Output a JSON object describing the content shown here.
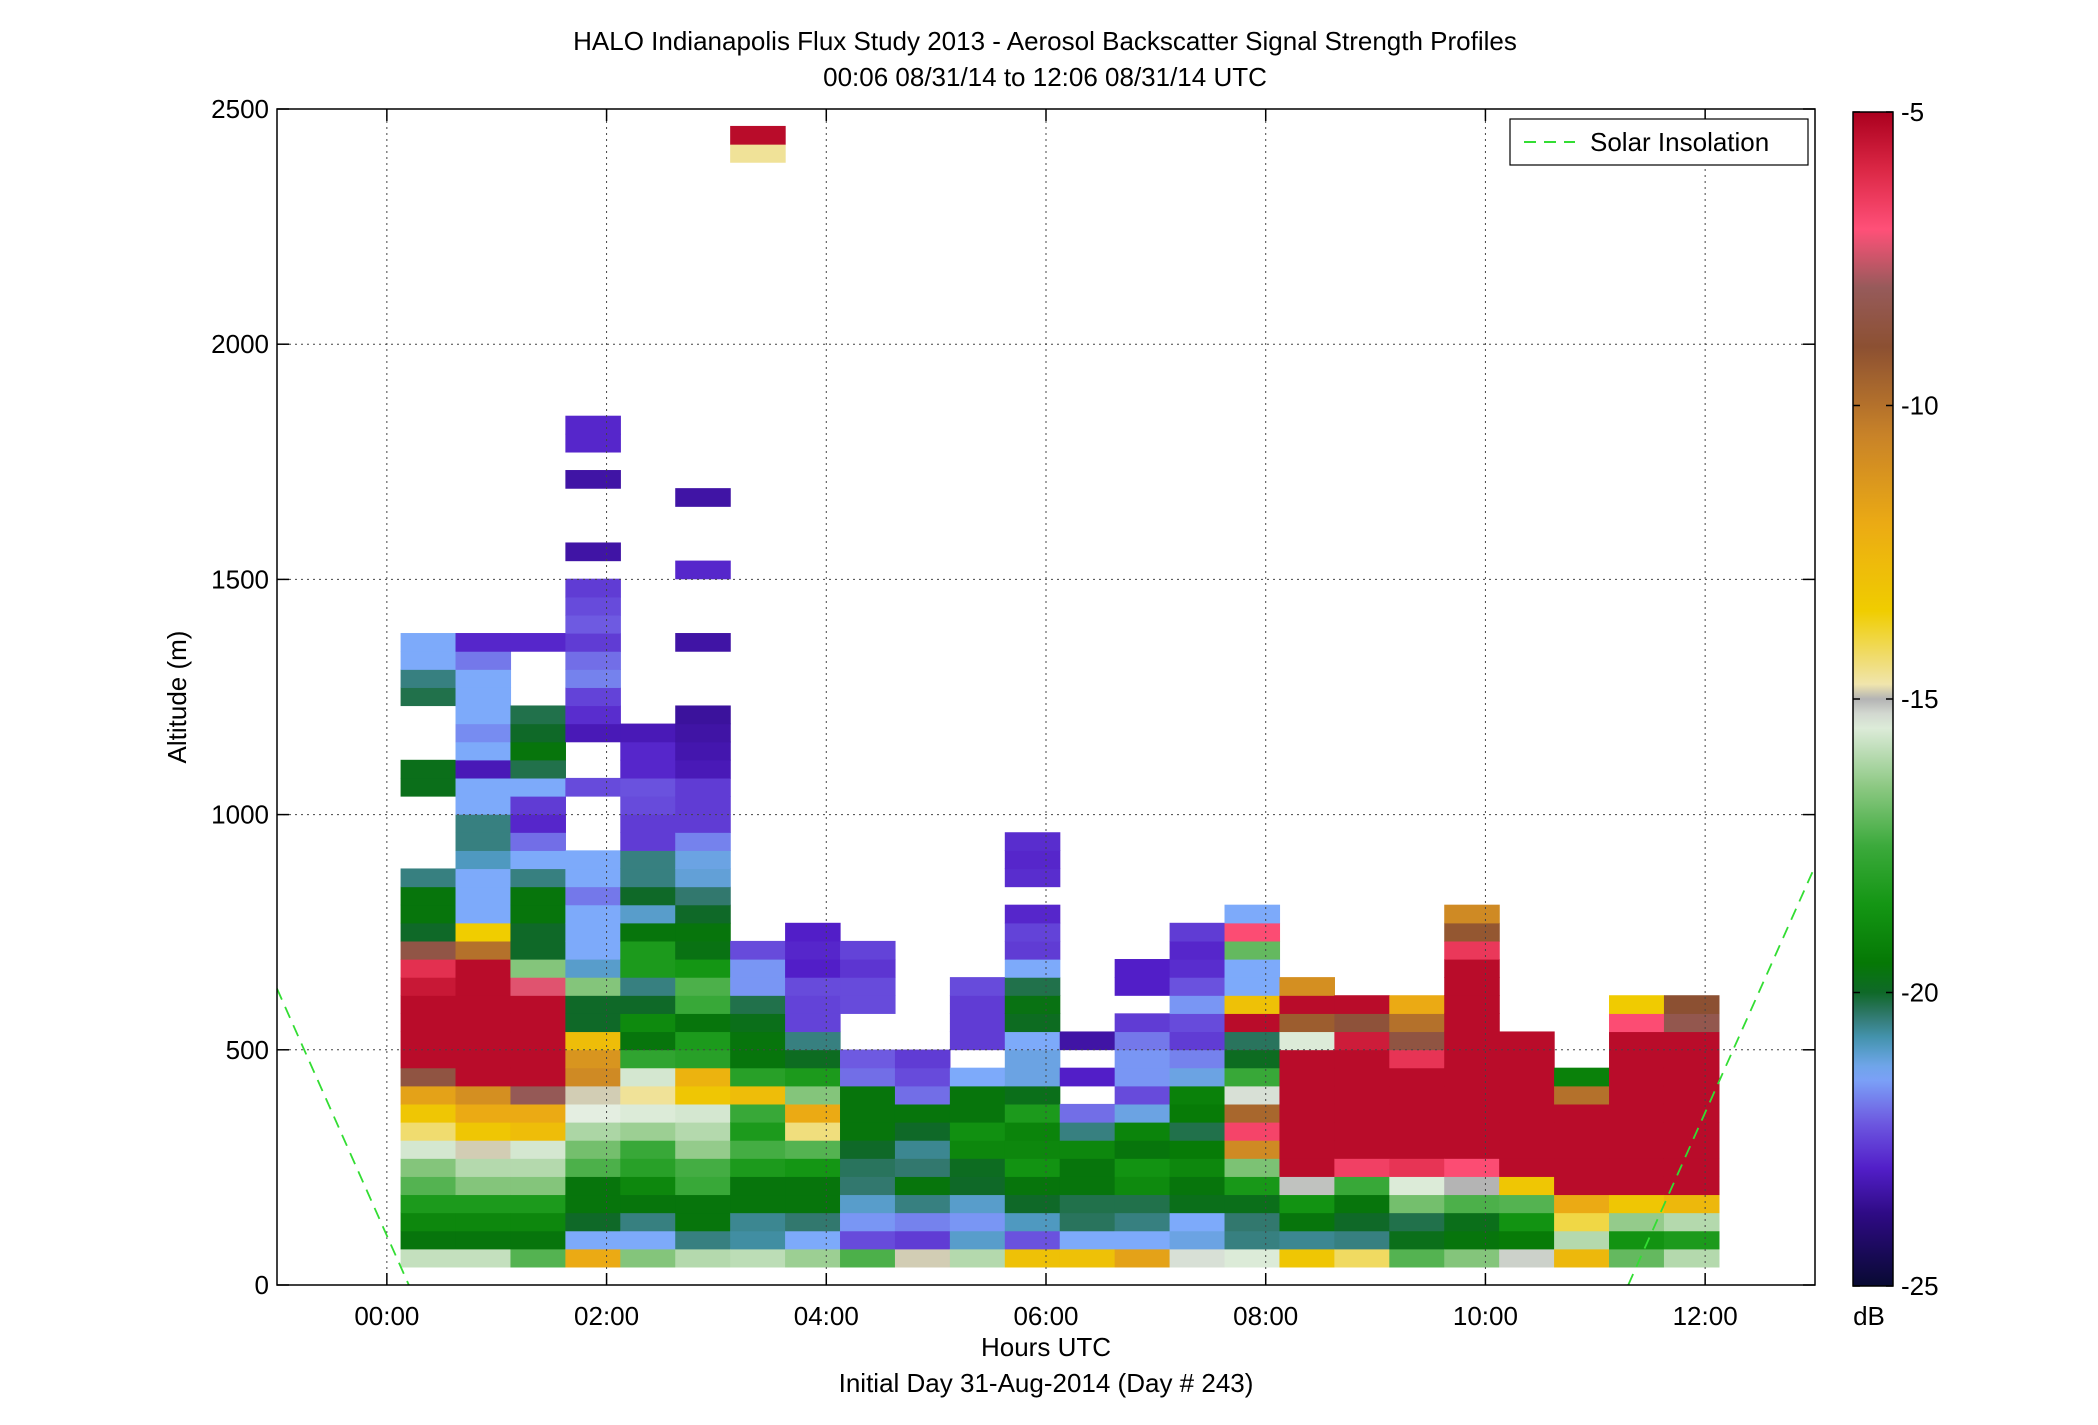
{
  "chart_data": {
    "type": "heatmap",
    "title": "HALO Indianapolis Flux Study 2013 - Aerosol Backscatter Signal Strength Profiles",
    "subtitle": "00:06 08/31/14 to 12:06 08/31/14  UTC",
    "xlabel": "Hours UTC",
    "xlabel2": "Initial Day 31-Aug-2014 (Day # 243)",
    "ylabel": "Altitude (m)",
    "xlim": [
      -1.0,
      13.0
    ],
    "ylim": [
      0,
      2500
    ],
    "grid": true,
    "x_ticks": [
      0,
      2,
      4,
      6,
      8,
      10,
      12
    ],
    "x_tick_labels": [
      "00:00",
      "02:00",
      "04:00",
      "06:00",
      "08:00",
      "10:00",
      "12:00"
    ],
    "y_ticks": [
      0,
      500,
      1000,
      1500,
      2000,
      2500
    ],
    "y_tick_labels": [
      "0",
      "500",
      "1000",
      "1500",
      "2000",
      "2500"
    ],
    "colorbar": {
      "label": "dB",
      "range": [
        -25,
        -5
      ],
      "ticks": [
        -25,
        -20,
        -15,
        -10,
        -5
      ],
      "tick_labels": [
        "-25",
        "-20",
        "-15",
        "-10",
        "-5"
      ]
    },
    "legend": {
      "position": "top-right",
      "entries": [
        "Solar Insolation"
      ]
    },
    "solar_insolation_line": {
      "color": "#33dd33",
      "segments": [
        [
          [
            -1.0,
            630
          ],
          [
            0.2,
            0
          ]
        ],
        [
          [
            11.3,
            0
          ],
          [
            13.0,
            890
          ]
        ]
      ]
    },
    "column_width_hours": 0.5,
    "row_height_m": 38.5,
    "columns": [
      {
        "t": 0.375,
        "z0": 38.5,
        "dB": [
          -15.8,
          -19.6,
          -19.0,
          -18.3,
          -17.2,
          -16.6,
          -15.6,
          -14.3,
          -13.2,
          -11.7,
          -8.6,
          -5.3,
          -5.3,
          -5.3,
          -5.3,
          -5.6,
          -6.2,
          -8.5,
          -20.0,
          -19.6,
          -19.6,
          -20.5,
          null,
          null,
          null,
          null,
          -19.8,
          -19.8,
          null,
          null,
          null,
          -20.2,
          -20.5,
          -21.4,
          -21.4
        ]
      },
      {
        "t": 0.875,
        "z0": 38.5,
        "dB": [
          -15.8,
          -19.6,
          -19.0,
          -18.3,
          -16.6,
          -16.0,
          -14.9,
          -13.2,
          -12.0,
          -11.0,
          -5.3,
          -5.3,
          -5.3,
          -5.3,
          -5.3,
          -5.3,
          -5.3,
          -10.0,
          -13.5,
          -21.4,
          -21.4,
          -21.4,
          -20.9,
          -20.5,
          -20.5,
          -21.4,
          -21.4,
          -23.2,
          -21.4,
          -21.7,
          -21.4,
          -21.4,
          -21.4,
          -21.9,
          -22.9
        ]
      },
      {
        "t": 1.375,
        "z0": 38.5,
        "dB": [
          -17.2,
          -19.6,
          -19.0,
          -18.3,
          -16.6,
          -16.0,
          -15.6,
          -12.8,
          -12.0,
          -8.1,
          -5.3,
          -5.3,
          -5.3,
          -5.3,
          -5.3,
          -7.3,
          -16.6,
          -20.0,
          -20.0,
          -19.6,
          -19.6,
          -20.5,
          -21.4,
          -22.0,
          -22.9,
          -22.6,
          -21.4,
          -20.2,
          -19.6,
          -20.0,
          -20.2,
          null,
          null,
          null,
          -22.9
        ]
      },
      {
        "t": 1.875,
        "z0": 38.5,
        "dB": [
          -12.0,
          -21.4,
          -20.0,
          -19.6,
          -19.6,
          -17.3,
          -16.8,
          -16.1,
          -15.4,
          -14.9,
          -10.8,
          -11.2,
          -12.8,
          -20.0,
          -20.0,
          -16.6,
          -21.0,
          -21.4,
          -21.4,
          -21.4,
          -21.9,
          -21.4,
          -21.4,
          null,
          null,
          null,
          -22.4,
          null,
          null,
          -23.2,
          -22.8,
          -22.5,
          -21.8,
          -22.0,
          -22.6,
          -22.2,
          -22.4,
          -22.6,
          null,
          -23.4,
          null,
          null,
          null,
          -23.4,
          null,
          -22.9,
          -22.9
        ]
      },
      {
        "t": 2.375,
        "z0": 38.5,
        "dB": [
          -16.6,
          -21.4,
          -20.5,
          -19.6,
          -19.0,
          -18.0,
          -17.6,
          -16.3,
          -15.5,
          -14.6,
          -15.6,
          -17.8,
          -19.6,
          -18.9,
          -20.0,
          -20.5,
          -18.3,
          -18.3,
          -19.6,
          -21.0,
          -20.0,
          -20.5,
          -20.5,
          -22.6,
          -22.6,
          -22.4,
          -22.3,
          -22.9,
          -22.9,
          -23.2
        ]
      },
      {
        "t": 2.875,
        "z0": 38.5,
        "dB": [
          -16.0,
          -20.5,
          -19.6,
          -19.6,
          -17.6,
          -17.4,
          -16.4,
          -16.0,
          -15.6,
          -13.2,
          -12.4,
          -18.0,
          -18.3,
          -19.6,
          -17.6,
          -17.3,
          -18.5,
          -19.7,
          -19.6,
          -20.0,
          -20.4,
          -21.1,
          -21.2,
          -21.8,
          -22.6,
          -22.6,
          -22.6,
          -23.2,
          -23.3,
          -23.4,
          -23.5,
          null,
          null,
          null,
          -23.4,
          null,
          null,
          null,
          -22.9,
          null,
          null,
          null,
          -23.4
        ]
      },
      {
        "t": 3.375,
        "z0": 38.5,
        "dB": [
          -15.9,
          -20.7,
          -20.6,
          -19.6,
          -19.6,
          -18.3,
          -17.4,
          -18.3,
          -17.6,
          -12.8,
          -18.0,
          -19.6,
          -19.6,
          -19.8,
          -20.2,
          -21.6,
          -21.6,
          -22.4,
          null,
          null,
          null,
          null,
          null,
          null,
          null,
          null,
          null,
          null,
          null,
          null,
          null,
          null,
          null,
          null,
          null,
          null,
          null,
          null,
          null,
          null,
          null,
          null,
          null,
          null,
          null,
          null,
          null,
          null,
          null,
          null,
          null,
          null,
          null,
          null,
          null,
          null,
          null,
          null,
          null,
          null,
          null,
          -14.6,
          -5.3
        ]
      },
      {
        "t": 3.875,
        "z0": 38.5,
        "dB": [
          -16.3,
          -21.4,
          -20.4,
          -19.6,
          -19.6,
          -18.5,
          -17.2,
          -14.4,
          -12.0,
          -16.6,
          -18.3,
          -19.9,
          -20.5,
          -22.5,
          -22.5,
          -22.4,
          -23.0,
          -22.9,
          -23.0
        ]
      },
      {
        "t": 4.375,
        "z0": 38.5,
        "dB": [
          -17.3,
          -22.4,
          -21.6,
          -21.0,
          -20.4,
          -20.3,
          -20.0,
          -19.6,
          -19.6,
          -19.6,
          -22.0,
          -22.2,
          null,
          null,
          -22.4,
          -22.4,
          -22.7,
          -22.5
        ]
      },
      {
        "t": 4.875,
        "z0": 38.5,
        "dB": [
          -14.9,
          -22.6,
          -21.8,
          -20.5,
          -19.6,
          -20.4,
          -20.6,
          -20.0,
          -19.6,
          -22.0,
          -22.4,
          -22.6
        ]
      },
      {
        "t": 5.375,
        "z0": 38.5,
        "dB": [
          -16.0,
          -21.0,
          -21.6,
          -21.0,
          -20.0,
          -19.9,
          -19.0,
          -18.7,
          -19.6,
          -19.6,
          -21.4,
          null,
          -22.6,
          -22.6,
          -22.6,
          -22.4
        ]
      },
      {
        "t": 5.875,
        "z0": 38.5,
        "dB": [
          -13.0,
          -22.3,
          -20.9,
          -20.0,
          -19.6,
          -18.6,
          -19.0,
          -19.1,
          -18.3,
          -19.8,
          -21.2,
          -21.2,
          -21.4,
          -19.9,
          -19.7,
          -20.2,
          -21.4,
          -22.6,
          -22.5,
          -22.9,
          null,
          -22.8,
          -22.9,
          -22.8
        ]
      },
      {
        "t": 6.375,
        "z0": 38.5,
        "dB": [
          -13.0,
          -21.4,
          -20.3,
          -20.2,
          -19.6,
          -19.6,
          -19.0,
          -20.5,
          -22.0,
          null,
          -23.0,
          null,
          -23.4
        ]
      },
      {
        "t": 6.875,
        "z0": 38.5,
        "dB": [
          -11.7,
          -21.4,
          -20.5,
          -20.2,
          -18.9,
          -18.6,
          -19.6,
          -19.1,
          -21.2,
          -22.4,
          -21.6,
          -21.6,
          -21.9,
          -22.6,
          null,
          -23.0,
          -23.0
        ]
      },
      {
        "t": 7.375,
        "z0": 38.5,
        "dB": [
          -15.3,
          -21.2,
          -21.4,
          -19.8,
          -19.6,
          -19.0,
          -19.4,
          -20.2,
          -19.4,
          -19.2,
          -21.2,
          -21.8,
          -22.6,
          -22.4,
          -21.6,
          -22.3,
          -22.8,
          -22.9,
          -22.6
        ]
      },
      {
        "t": 7.875,
        "z0": 38.5,
        "dB": [
          -15.5,
          -20.5,
          -20.4,
          -19.8,
          -18.4,
          -16.7,
          -10.8,
          -6.7,
          -9.7,
          -15.3,
          -17.6,
          -19.9,
          -20.3,
          -5.3,
          -13.0,
          -21.4,
          -21.4,
          -17.0,
          -6.9,
          -21.4
        ]
      },
      {
        "t": 8.375,
        "z0": 38.5,
        "dB": [
          -13.2,
          -20.6,
          -19.6,
          -18.6,
          -15.1,
          -5.3,
          -5.3,
          -5.3,
          -5.3,
          -5.3,
          -5.3,
          -5.3,
          -15.5,
          -9.4,
          -5.3,
          -11.0
        ]
      },
      {
        "t": 8.875,
        "z0": 38.5,
        "dB": [
          -14.2,
          -20.5,
          -20.0,
          -19.6,
          -17.6,
          -6.6,
          -5.3,
          -5.3,
          -5.3,
          -5.3,
          -5.3,
          -5.3,
          -5.7,
          -8.8,
          -5.3
        ]
      },
      {
        "t": 9.375,
        "z0": 38.5,
        "dB": [
          -17.2,
          -19.8,
          -20.2,
          -16.8,
          -15.5,
          -6.3,
          -5.3,
          -5.3,
          -5.3,
          -5.3,
          -5.3,
          -6.3,
          -8.6,
          -10.0,
          -12.0
        ]
      },
      {
        "t": 9.875,
        "z0": 38.5,
        "dB": [
          -16.6,
          -19.6,
          -19.8,
          -17.3,
          -15.0,
          -6.9,
          -5.3,
          -5.3,
          -5.3,
          -5.3,
          -5.3,
          -5.3,
          -5.3,
          -5.3,
          -5.3,
          -5.3,
          -5.3,
          -6.4,
          -9.2,
          -10.8
        ]
      },
      {
        "t": 10.375,
        "z0": 38.5,
        "dB": [
          -15.2,
          -19.4,
          -18.6,
          -17.2,
          -13.2,
          -5.3,
          -5.3,
          -5.3,
          -5.3,
          -5.3,
          -5.3,
          -5.3,
          -5.3
        ]
      },
      {
        "t": 10.875,
        "z0": 38.5,
        "dB": [
          -12.6,
          -16.0,
          -14.0,
          -12.0,
          -5.3,
          -5.3,
          -5.3,
          -5.3,
          -5.3,
          -10.0,
          -19.2
        ]
      },
      {
        "t": 11.375,
        "z0": 38.5,
        "dB": [
          -17.0,
          -18.6,
          -16.4,
          -13.2,
          -5.3,
          -5.3,
          -5.3,
          -5.3,
          -5.3,
          -5.3,
          -5.3,
          -5.3,
          -5.3,
          -6.9,
          -13.4
        ]
      },
      {
        "t": 11.875,
        "z0": 38.5,
        "dB": [
          -16.0,
          -18.3,
          -16.0,
          -12.6,
          -5.3,
          -5.3,
          -5.3,
          -5.3,
          -5.3,
          -5.3,
          -5.3,
          -5.3,
          -5.3,
          -8.3,
          -9.0
        ]
      }
    ]
  }
}
